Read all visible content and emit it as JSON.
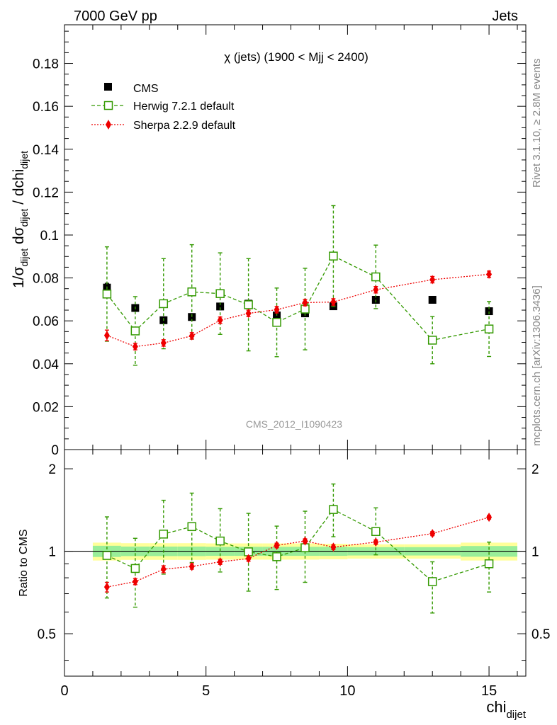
{
  "header": {
    "left": "7000 GeV pp",
    "right": "Jets"
  },
  "side_labels": {
    "rivet": "Rivet 3.1.10, ≥ 2.8M events",
    "mcplots": "mcplots.cern.ch [arXiv:1306.3436]"
  },
  "chart_data": [
    {
      "type": "scatter",
      "title": "χ (jets) (1900 < Mjj < 2400)",
      "watermark": "CMS_2012_I1090423",
      "ylabel": "1/σ_dijet dσ_dijet / dchi_dijet",
      "xlim": [
        0,
        16.3
      ],
      "ylim": [
        0,
        0.198
      ],
      "yticks": [
        "0",
        "0.02",
        "0.04",
        "0.06",
        "0.08",
        "0.1",
        "0.12",
        "0.14",
        "0.16",
        "0.18"
      ],
      "legend_position": "top-left",
      "series": [
        {
          "name": "CMS",
          "color": "#000000",
          "marker": "square-filled",
          "x": [
            1.5,
            2.5,
            3.5,
            4.5,
            5.5,
            6.5,
            7.5,
            8.5,
            9.5,
            11,
            13,
            15
          ],
          "y": [
            0.0755,
            0.066,
            0.0603,
            0.0618,
            0.0667,
            0.068,
            0.0625,
            0.0635,
            0.0668,
            0.0698,
            0.0698,
            0.0645
          ],
          "err": [
            0.002,
            0.0015,
            0.0015,
            0.0015,
            0.0015,
            0.0015,
            0.0015,
            0.0015,
            0.0015,
            0.0015,
            0.0015,
            0.0015
          ]
        },
        {
          "name": "Herwig 7.2.1 default",
          "color": "#339900",
          "marker": "square-open",
          "x": [
            1.5,
            2.5,
            3.5,
            4.5,
            5.5,
            6.5,
            7.5,
            8.5,
            9.5,
            11,
            13,
            15
          ],
          "y": [
            0.0725,
            0.0553,
            0.068,
            0.0735,
            0.0727,
            0.0675,
            0.0593,
            0.0655,
            0.0902,
            0.0805,
            0.051,
            0.0562
          ],
          "err": [
            0.022,
            0.016,
            0.021,
            0.022,
            0.019,
            0.0215,
            0.016,
            0.019,
            0.0235,
            0.0148,
            0.011,
            0.0128
          ]
        },
        {
          "name": "Sherpa 2.2.9 default",
          "color": "#ee0000",
          "marker": "diamond",
          "x": [
            1.5,
            2.5,
            3.5,
            4.5,
            5.5,
            6.5,
            7.5,
            8.5,
            9.5,
            11,
            13,
            15
          ],
          "y": [
            0.0532,
            0.048,
            0.0497,
            0.053,
            0.0603,
            0.0635,
            0.0652,
            0.0685,
            0.0688,
            0.0745,
            0.0792,
            0.0817
          ],
          "err": [
            0.0025,
            0.0015,
            0.0015,
            0.0015,
            0.0015,
            0.0015,
            0.0015,
            0.0015,
            0.0015,
            0.0015,
            0.0015,
            0.0015
          ]
        }
      ]
    },
    {
      "type": "scatter",
      "ylabel": "Ratio to CMS",
      "xlabel": "chi_dijet",
      "xlim": [
        0,
        16.3
      ],
      "ylim": [
        0.35,
        2.35
      ],
      "xticks": [
        "0",
        "5",
        "10",
        "15"
      ],
      "yticks": [
        "0.5",
        "1",
        "2"
      ],
      "reference_line": 1,
      "bands": [
        {
          "x0": 1,
          "x1": 2,
          "inner": [
            0.953,
            1.047
          ],
          "outer": [
            0.925,
            1.075
          ]
        },
        {
          "x0": 2,
          "x1": 3,
          "inner": [
            0.96,
            1.04
          ],
          "outer": [
            0.93,
            1.07
          ]
        },
        {
          "x0": 3,
          "x1": 4,
          "inner": [
            0.96,
            1.04
          ],
          "outer": [
            0.93,
            1.07
          ]
        },
        {
          "x0": 4,
          "x1": 5,
          "inner": [
            0.96,
            1.04
          ],
          "outer": [
            0.93,
            1.07
          ]
        },
        {
          "x0": 5,
          "x1": 6,
          "inner": [
            0.962,
            1.038
          ],
          "outer": [
            0.932,
            1.068
          ]
        },
        {
          "x0": 6,
          "x1": 7,
          "inner": [
            0.962,
            1.038
          ],
          "outer": [
            0.932,
            1.068
          ]
        },
        {
          "x0": 7,
          "x1": 8,
          "inner": [
            0.962,
            1.038
          ],
          "outer": [
            0.932,
            1.068
          ]
        },
        {
          "x0": 8,
          "x1": 9,
          "inner": [
            0.962,
            1.038
          ],
          "outer": [
            0.932,
            1.068
          ]
        },
        {
          "x0": 9,
          "x1": 10,
          "inner": [
            0.962,
            1.038
          ],
          "outer": [
            0.935,
            1.065
          ]
        },
        {
          "x0": 10,
          "x1": 12,
          "inner": [
            0.965,
            1.035
          ],
          "outer": [
            0.94,
            1.06
          ]
        },
        {
          "x0": 12,
          "x1": 14,
          "inner": [
            0.965,
            1.035
          ],
          "outer": [
            0.94,
            1.06
          ]
        },
        {
          "x0": 14,
          "x1": 16,
          "inner": [
            0.955,
            1.045
          ],
          "outer": [
            0.925,
            1.075
          ]
        }
      ],
      "series": [
        {
          "name": "Herwig 7.2.1 default",
          "color": "#339900",
          "marker": "square-open",
          "x": [
            1.5,
            2.5,
            3.5,
            4.5,
            5.5,
            6.5,
            7.5,
            8.5,
            9.5,
            11,
            13,
            15
          ],
          "y": [
            0.965,
            0.865,
            1.155,
            1.23,
            1.09,
            0.995,
            0.955,
            1.03,
            1.42,
            1.18,
            0.775,
            0.9
          ],
          "err_low": [
            0.29,
            0.24,
            0.33,
            0.32,
            0.25,
            0.28,
            0.23,
            0.26,
            0.29,
            0.21,
            0.18,
            0.19
          ],
          "err_high": [
            0.37,
            0.25,
            0.38,
            0.4,
            0.34,
            0.38,
            0.28,
            0.37,
            0.34,
            0.26,
            0.14,
            0.18
          ]
        },
        {
          "name": "Sherpa 2.2.9 default",
          "color": "#ee0000",
          "marker": "diamond",
          "x": [
            1.5,
            2.5,
            3.5,
            4.5,
            5.5,
            6.5,
            7.5,
            8.5,
            9.5,
            11,
            13,
            15
          ],
          "y": [
            0.74,
            0.775,
            0.86,
            0.88,
            0.915,
            0.94,
            1.05,
            1.09,
            1.035,
            1.08,
            1.16,
            1.33
          ],
          "err_low": [
            0.03,
            0.02,
            0.025,
            0.02,
            0.02,
            0.02,
            0.02,
            0.02,
            0.02,
            0.02,
            0.02,
            0.02
          ],
          "err_high": [
            0.03,
            0.02,
            0.025,
            0.02,
            0.02,
            0.02,
            0.02,
            0.02,
            0.02,
            0.02,
            0.02,
            0.02
          ]
        }
      ]
    }
  ]
}
